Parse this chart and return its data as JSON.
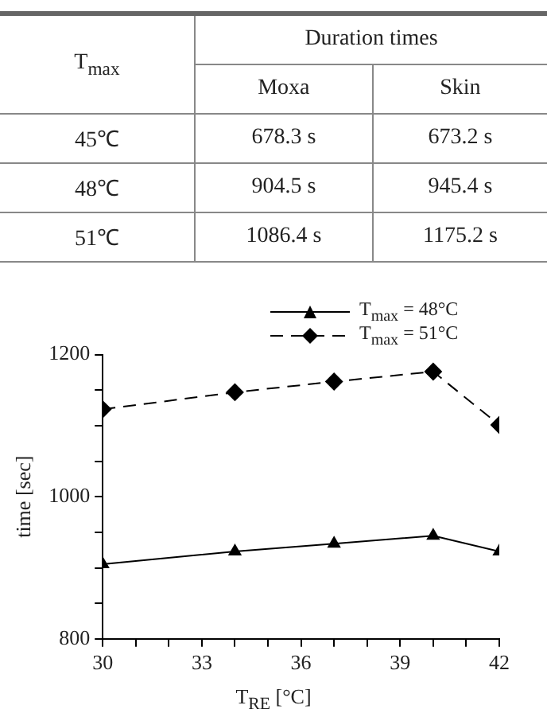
{
  "chart_data": [
    {
      "type": "heatmap",
      "title": "Duration times",
      "ylabel": "T$_{max}$",
      "categories": [
        "Moxa",
        "Skin"
      ],
      "y_categories": [
        "45℃",
        "48℃",
        "51℃"
      ],
      "cells": [
        [
          678.3,
          673.2
        ],
        [
          904.5,
          945.4
        ],
        [
          1086.4,
          1175.2
        ]
      ],
      "cell_labels": [
        [
          "678.3 s",
          "673.2 s"
        ],
        [
          "904.5 s",
          "945.4 s"
        ],
        [
          "1086.4 s",
          "1175.2 s"
        ]
      ]
    },
    {
      "type": "line",
      "xlabel": "T$_{RE}$ [°C]",
      "ylabel": "time [sec]",
      "x": [
        30,
        34,
        37,
        40,
        42
      ],
      "series": [
        {
          "name": "T$_{max}$ = 48°C",
          "color": "#000000",
          "marker": "triangle",
          "line_style": "solid",
          "values": [
            905,
            923,
            934,
            945,
            923
          ]
        },
        {
          "name": "T$_{max}$ = 51°C",
          "color": "#000000",
          "marker": "diamond",
          "line_style": "dashed",
          "values": [
            1123,
            1147,
            1162,
            1176,
            1101
          ]
        }
      ],
      "xlim": [
        30,
        42
      ],
      "xticks": [
        30,
        {
          "value": 31,
          "label": null
        },
        {
          "value": 32,
          "label": null
        },
        33,
        {
          "value": 34,
          "label": null
        },
        {
          "value": 35,
          "label": null
        },
        36,
        {
          "value": 37,
          "label": null
        },
        {
          "value": 38,
          "label": null
        },
        39,
        {
          "value": 40,
          "label": null
        },
        {
          "value": 41,
          "label": null
        },
        42
      ],
      "ylim": [
        800,
        1200
      ],
      "yticks": [
        800,
        {
          "value": 850,
          "label": null
        },
        {
          "value": 900,
          "label": null
        },
        {
          "value": 950,
          "label": null
        },
        1000,
        {
          "value": 1050,
          "label": null
        },
        {
          "value": 1100,
          "label": null
        },
        {
          "value": 1150,
          "label": null
        },
        1200
      ],
      "grid": false,
      "legend": "top right"
    }
  ]
}
